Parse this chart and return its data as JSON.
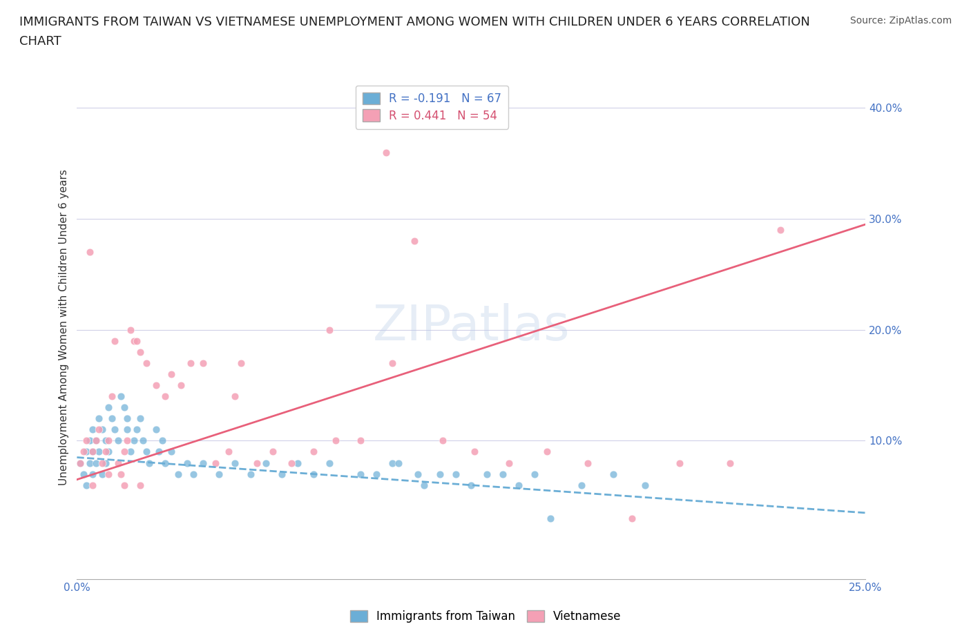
{
  "title_line1": "IMMIGRANTS FROM TAIWAN VS VIETNAMESE UNEMPLOYMENT AMONG WOMEN WITH CHILDREN UNDER 6 YEARS CORRELATION",
  "title_line2": "CHART",
  "source": "Source: ZipAtlas.com",
  "ylabel": "Unemployment Among Women with Children Under 6 years",
  "xlim": [
    0.0,
    0.25
  ],
  "ylim": [
    -0.025,
    0.43
  ],
  "x_ticks": [
    0.0,
    0.05,
    0.1,
    0.15,
    0.2,
    0.25
  ],
  "x_tick_labels": [
    "0.0%",
    "",
    "",
    "",
    "",
    "25.0%"
  ],
  "y_ticks": [
    0.0,
    0.1,
    0.2,
    0.3,
    0.4
  ],
  "y_tick_labels": [
    "",
    "10.0%",
    "20.0%",
    "30.0%",
    "40.0%"
  ],
  "taiwan_color": "#6baed6",
  "vietnam_color": "#f4a0b5",
  "taiwan_line_color": "#6baed6",
  "vietnam_line_color": "#e8607a",
  "taiwan_R": -0.191,
  "taiwan_N": 67,
  "vietnam_R": 0.441,
  "vietnam_N": 54,
  "taiwan_x": [
    0.001,
    0.002,
    0.003,
    0.003,
    0.004,
    0.004,
    0.005,
    0.005,
    0.005,
    0.006,
    0.006,
    0.007,
    0.007,
    0.008,
    0.008,
    0.009,
    0.009,
    0.01,
    0.01,
    0.011,
    0.012,
    0.013,
    0.014,
    0.015,
    0.016,
    0.016,
    0.017,
    0.018,
    0.019,
    0.02,
    0.021,
    0.022,
    0.023,
    0.025,
    0.026,
    0.027,
    0.028,
    0.03,
    0.032,
    0.035,
    0.037,
    0.04,
    0.045,
    0.05,
    0.055,
    0.06,
    0.065,
    0.07,
    0.075,
    0.08,
    0.09,
    0.1,
    0.11,
    0.12,
    0.13,
    0.14,
    0.15,
    0.16,
    0.17,
    0.18,
    0.095,
    0.102,
    0.108,
    0.115,
    0.125,
    0.135,
    0.145
  ],
  "taiwan_y": [
    0.08,
    0.07,
    0.09,
    0.06,
    0.1,
    0.08,
    0.11,
    0.09,
    0.07,
    0.1,
    0.08,
    0.12,
    0.09,
    0.11,
    0.07,
    0.1,
    0.08,
    0.13,
    0.09,
    0.12,
    0.11,
    0.1,
    0.14,
    0.13,
    0.12,
    0.11,
    0.09,
    0.1,
    0.11,
    0.12,
    0.1,
    0.09,
    0.08,
    0.11,
    0.09,
    0.1,
    0.08,
    0.09,
    0.07,
    0.08,
    0.07,
    0.08,
    0.07,
    0.08,
    0.07,
    0.08,
    0.07,
    0.08,
    0.07,
    0.08,
    0.07,
    0.08,
    0.06,
    0.07,
    0.07,
    0.06,
    0.03,
    0.06,
    0.07,
    0.06,
    0.07,
    0.08,
    0.07,
    0.07,
    0.06,
    0.07,
    0.07
  ],
  "vietnam_x": [
    0.001,
    0.002,
    0.003,
    0.004,
    0.005,
    0.006,
    0.007,
    0.008,
    0.009,
    0.01,
    0.011,
    0.012,
    0.013,
    0.014,
    0.015,
    0.016,
    0.017,
    0.018,
    0.019,
    0.02,
    0.022,
    0.025,
    0.028,
    0.03,
    0.033,
    0.036,
    0.04,
    0.044,
    0.048,
    0.052,
    0.057,
    0.062,
    0.068,
    0.075,
    0.082,
    0.09,
    0.098,
    0.107,
    0.116,
    0.126,
    0.137,
    0.149,
    0.162,
    0.176,
    0.191,
    0.207,
    0.223,
    0.005,
    0.01,
    0.015,
    0.02,
    0.1,
    0.05,
    0.08
  ],
  "vietnam_y": [
    0.08,
    0.09,
    0.1,
    0.27,
    0.09,
    0.1,
    0.11,
    0.08,
    0.09,
    0.1,
    0.14,
    0.19,
    0.08,
    0.07,
    0.09,
    0.1,
    0.2,
    0.19,
    0.19,
    0.18,
    0.17,
    0.15,
    0.14,
    0.16,
    0.15,
    0.17,
    0.17,
    0.08,
    0.09,
    0.17,
    0.08,
    0.09,
    0.08,
    0.09,
    0.1,
    0.1,
    0.36,
    0.28,
    0.1,
    0.09,
    0.08,
    0.09,
    0.08,
    0.03,
    0.08,
    0.08,
    0.29,
    0.06,
    0.07,
    0.06,
    0.06,
    0.17,
    0.14,
    0.2
  ],
  "taiwan_trend_x": [
    0.0,
    0.25
  ],
  "taiwan_trend_y": [
    0.085,
    0.035
  ],
  "vietnam_trend_x": [
    0.0,
    0.25
  ],
  "vietnam_trend_y": [
    0.065,
    0.295
  ],
  "background_color": "#ffffff",
  "watermark": "ZIPatlas",
  "grid_color": "#d0d0e8",
  "title_fontsize": 13,
  "axis_label_fontsize": 11,
  "tick_fontsize": 11,
  "legend_fontsize": 12,
  "source_fontsize": 10,
  "legend_taiwan_color": "#4472c4",
  "legend_vietnam_color": "#d45070"
}
